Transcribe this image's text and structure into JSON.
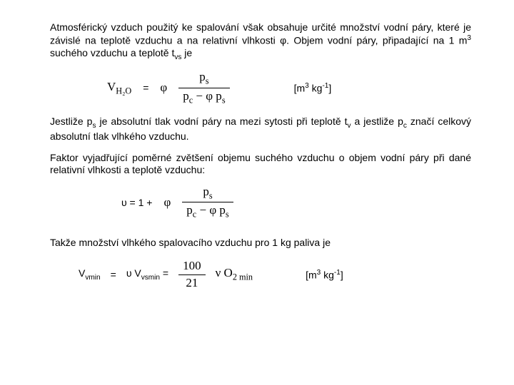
{
  "para1_a": "Atmosférický vzduch použitý ke spalování však obsahuje určité množství vodní páry, které je závislé na teplotě vzduchu a na relativní vlhkosti φ. Objem vodní páry, připadající na 1 m",
  "para1_b_sup": "3 ",
  "para1_c": "suchého vzduchu a teplotě t",
  "para1_d_sub": "vs",
  "para1_e": " je",
  "eq1_lhs_V": "V",
  "eq1_lhs_sub": "H₂O",
  "eq1_eq": "=",
  "eq1_phi": "φ",
  "eq1_num": "p",
  "eq1_num_sub": "s",
  "eq1_den_a": "p",
  "eq1_den_a_sub": "c",
  "eq1_den_minus": "−",
  "eq1_den_b": "φ p",
  "eq1_den_b_sub": "s",
  "unit1_a": "[m",
  "unit1_b_sup": "3",
  "unit1_c": " kg",
  "unit1_d_sup": "-1",
  "unit1_e": "]",
  "para2_a": "Jestliže p",
  "para2_b_sub": "s",
  "para2_c": " je absolutní tlak vodní páry na mezi sytosti při teplotě t",
  "para2_d_sub": "v",
  "para2_e": " a jestliže p",
  "para2_f_sub": "c",
  "para2_g": " značí celkový absolutní tlak vlhkého vzduchu.",
  "para3": "Faktor vyjadřující poměrné zvětšení objemu suchého vzduchu o objem vodní páry při dané relativní vlhkosti a teplotě vzduchu:",
  "eq2_lhs": "υ = 1 +",
  "eq2_phi": "φ",
  "para4": "Takže množství vlhkého spalovacího vzduchu pro 1 kg paliva je",
  "eq3_V1": "V",
  "eq3_V1_sub": "vmin",
  "eq3_eq1": "=",
  "eq3_mid_a": "υ V",
  "eq3_mid_sub": "vsmin",
  "eq3_eq2": " =",
  "eq3_num": "100",
  "eq3_den": "21",
  "eq3_rhs_a": "ν O",
  "eq3_rhs_sub1": "2",
  "eq3_rhs_sub2": "min",
  "colors": {
    "text": "#000000",
    "bg": "#ffffff"
  }
}
